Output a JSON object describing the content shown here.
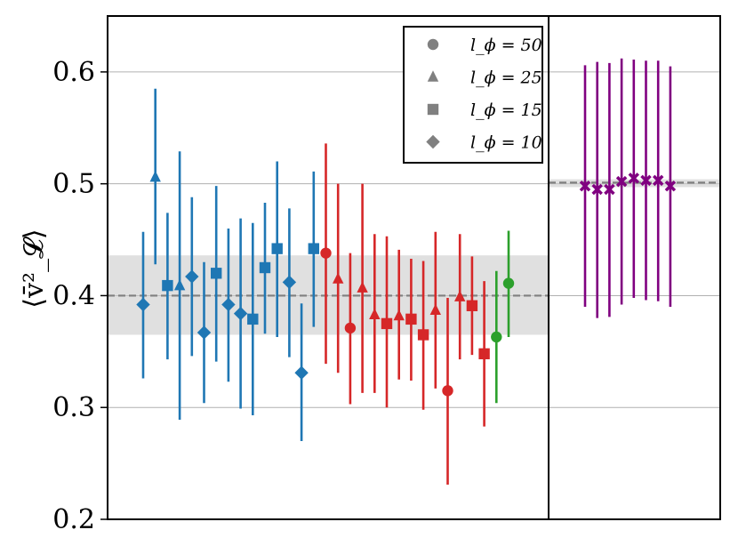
{
  "chart_data": {
    "type": "scatter",
    "title": "",
    "xlabel": "",
    "ylabel": "⟨v̄²_𝓛⟩",
    "ylim": [
      0.2,
      0.65
    ],
    "yticks": [
      0.2,
      0.3,
      0.4,
      0.5,
      0.6
    ],
    "ytick_labels": [
      "0.2",
      "0.3",
      "0.4",
      "0.5",
      "0.6"
    ],
    "grid": "horizontal",
    "legend_position": "top-right",
    "legend": [
      {
        "marker": "circle",
        "label": "l_ϕ = 50"
      },
      {
        "marker": "triangle",
        "label": "l_ϕ = 25"
      },
      {
        "marker": "square",
        "label": "l_ϕ = 15"
      },
      {
        "marker": "diamond",
        "label": "l_ϕ = 10"
      }
    ],
    "colors": {
      "blue": "#1f77b4",
      "red": "#d62728",
      "green": "#2ca02c",
      "purple": "#800080",
      "band": "#cccccc",
      "grid": "#b0b0b0",
      "dashed": "#808080"
    },
    "panels": [
      {
        "name": "left",
        "mean": 0.4,
        "band": [
          0.365,
          0.436
        ],
        "points": [
          {
            "series": "blue",
            "marker": "diamond",
            "y": 0.392,
            "lo": 0.326,
            "hi": 0.457
          },
          {
            "series": "blue",
            "marker": "triangle",
            "y": 0.506,
            "lo": 0.428,
            "hi": 0.585
          },
          {
            "series": "blue",
            "marker": "square",
            "y": 0.409,
            "lo": 0.343,
            "hi": 0.474
          },
          {
            "series": "blue",
            "marker": "triangle",
            "y": 0.409,
            "lo": 0.289,
            "hi": 0.529
          },
          {
            "series": "blue",
            "marker": "diamond",
            "y": 0.417,
            "lo": 0.346,
            "hi": 0.488
          },
          {
            "series": "blue",
            "marker": "diamond",
            "y": 0.367,
            "lo": 0.304,
            "hi": 0.43
          },
          {
            "series": "blue",
            "marker": "square",
            "y": 0.42,
            "lo": 0.341,
            "hi": 0.498
          },
          {
            "series": "blue",
            "marker": "diamond",
            "y": 0.392,
            "lo": 0.323,
            "hi": 0.46
          },
          {
            "series": "blue",
            "marker": "diamond",
            "y": 0.384,
            "lo": 0.299,
            "hi": 0.469
          },
          {
            "series": "blue",
            "marker": "square",
            "y": 0.379,
            "lo": 0.293,
            "hi": 0.465
          },
          {
            "series": "blue",
            "marker": "square",
            "y": 0.425,
            "lo": 0.366,
            "hi": 0.483
          },
          {
            "series": "blue",
            "marker": "square",
            "y": 0.442,
            "lo": 0.363,
            "hi": 0.52
          },
          {
            "series": "blue",
            "marker": "diamond",
            "y": 0.412,
            "lo": 0.345,
            "hi": 0.478
          },
          {
            "series": "blue",
            "marker": "diamond",
            "y": 0.331,
            "lo": 0.27,
            "hi": 0.393
          },
          {
            "series": "blue",
            "marker": "square",
            "y": 0.442,
            "lo": 0.372,
            "hi": 0.511
          },
          {
            "series": "red",
            "marker": "circle",
            "y": 0.438,
            "lo": 0.339,
            "hi": 0.536
          },
          {
            "series": "red",
            "marker": "triangle",
            "y": 0.415,
            "lo": 0.331,
            "hi": 0.5
          },
          {
            "series": "red",
            "marker": "circle",
            "y": 0.371,
            "lo": 0.303,
            "hi": 0.438
          },
          {
            "series": "red",
            "marker": "triangle",
            "y": 0.407,
            "lo": 0.313,
            "hi": 0.5
          },
          {
            "series": "red",
            "marker": "triangle",
            "y": 0.383,
            "lo": 0.313,
            "hi": 0.455
          },
          {
            "series": "red",
            "marker": "square",
            "y": 0.375,
            "lo": 0.3,
            "hi": 0.453
          },
          {
            "series": "red",
            "marker": "triangle",
            "y": 0.382,
            "lo": 0.325,
            "hi": 0.441
          },
          {
            "series": "red",
            "marker": "square",
            "y": 0.379,
            "lo": 0.324,
            "hi": 0.433
          },
          {
            "series": "red",
            "marker": "square",
            "y": 0.365,
            "lo": 0.298,
            "hi": 0.431
          },
          {
            "series": "red",
            "marker": "triangle",
            "y": 0.387,
            "lo": 0.317,
            "hi": 0.457
          },
          {
            "series": "red",
            "marker": "circle",
            "y": 0.315,
            "lo": 0.231,
            "hi": 0.398
          },
          {
            "series": "red",
            "marker": "triangle",
            "y": 0.399,
            "lo": 0.343,
            "hi": 0.455
          },
          {
            "series": "red",
            "marker": "square",
            "y": 0.391,
            "lo": 0.347,
            "hi": 0.435
          },
          {
            "series": "red",
            "marker": "square",
            "y": 0.348,
            "lo": 0.283,
            "hi": 0.413
          },
          {
            "series": "green",
            "marker": "circle",
            "y": 0.363,
            "lo": 0.304,
            "hi": 0.422
          },
          {
            "series": "green",
            "marker": "circle",
            "y": 0.411,
            "lo": 0.363,
            "hi": 0.458
          }
        ]
      },
      {
        "name": "right",
        "mean": 0.501,
        "band": [
          0.497,
          0.504
        ],
        "points": [
          {
            "series": "purple",
            "marker": "x",
            "y": 0.498,
            "lo": 0.39,
            "hi": 0.606
          },
          {
            "series": "purple",
            "marker": "x",
            "y": 0.495,
            "lo": 0.38,
            "hi": 0.609
          },
          {
            "series": "purple",
            "marker": "x",
            "y": 0.495,
            "lo": 0.381,
            "hi": 0.608
          },
          {
            "series": "purple",
            "marker": "x",
            "y": 0.502,
            "lo": 0.392,
            "hi": 0.612
          },
          {
            "series": "purple",
            "marker": "x",
            "y": 0.505,
            "lo": 0.398,
            "hi": 0.611
          },
          {
            "series": "purple",
            "marker": "x",
            "y": 0.503,
            "lo": 0.396,
            "hi": 0.61
          },
          {
            "series": "purple",
            "marker": "x",
            "y": 0.503,
            "lo": 0.395,
            "hi": 0.61
          },
          {
            "series": "purple",
            "marker": "x",
            "y": 0.498,
            "lo": 0.39,
            "hi": 0.605
          }
        ]
      }
    ]
  }
}
